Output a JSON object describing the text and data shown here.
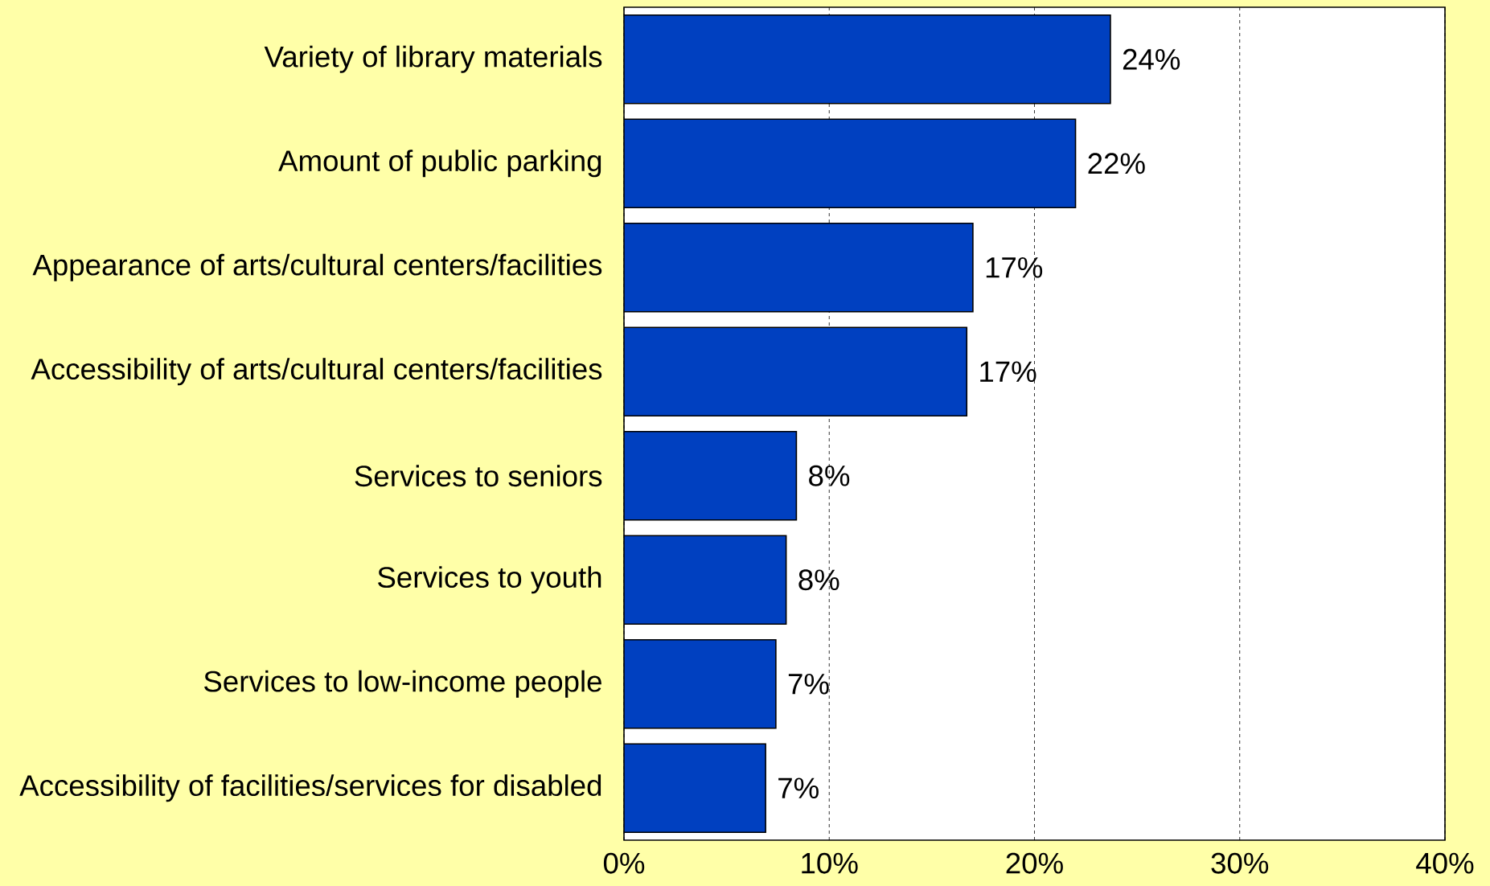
{
  "chart_data": {
    "type": "bar",
    "orientation": "horizontal",
    "categories": [
      "Variety of library materials",
      "Amount of public parking",
      "Appearance of arts/cultural centers/facilities",
      "Accessibility of arts/cultural centers/facilities",
      "Services to seniors",
      "Services to youth",
      "Services to low-income people",
      "Accessibility of facilities/services for disabled"
    ],
    "values": [
      23.7,
      22.0,
      17.0,
      16.7,
      8.4,
      7.9,
      7.4,
      6.9
    ],
    "value_labels": [
      "24%",
      "22%",
      "17%",
      "17%",
      "8%",
      "8%",
      "7%",
      "7%"
    ],
    "color": "#0040c0",
    "xlim": [
      0,
      40
    ],
    "xticks": [
      {
        "value": 0,
        "label": "0%"
      },
      {
        "value": 10,
        "label": "10%"
      },
      {
        "value": 20,
        "label": "20%"
      },
      {
        "value": 30,
        "label": "30%"
      },
      {
        "value": 40,
        "label": "40%"
      }
    ],
    "grid": "x"
  }
}
